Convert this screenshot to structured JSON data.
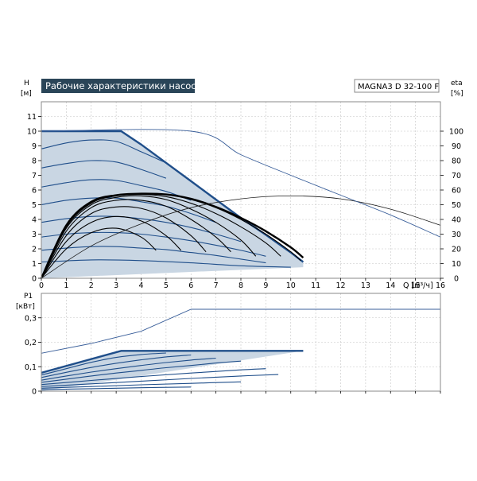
{
  "chart_data": [
    {
      "type": "line",
      "title": "Рабочие характеристики насоса",
      "model": "MAGNA3 D 32-100 F",
      "ylabel": "H",
      "yunit": "[м]",
      "y2label": "eta",
      "y2unit": "[%]",
      "xlabel": "Q [м³/ч]",
      "xlim": [
        0,
        16
      ],
      "xticks": [
        0,
        1,
        2,
        3,
        4,
        5,
        6,
        7,
        8,
        9,
        10,
        11,
        12,
        13,
        14,
        15,
        16
      ],
      "ylim": [
        0,
        12
      ],
      "yticks": [
        0,
        1,
        2,
        3,
        4,
        5,
        6,
        7,
        8,
        9,
        10,
        11
      ],
      "y2lim": [
        0,
        120
      ],
      "y2ticks": [
        0,
        10,
        20,
        30,
        40,
        50,
        60,
        70,
        80,
        90,
        100
      ],
      "grid": true,
      "operating_range": [
        [
          0,
          10
        ],
        [
          3.2,
          10
        ],
        [
          10.5,
          1.1
        ],
        [
          10.5,
          0.75
        ],
        [
          0,
          0
        ]
      ],
      "series": [
        {
          "role": "max_curve",
          "points": [
            [
              0,
              10
            ],
            [
              3.2,
              10
            ],
            [
              4,
              9.1
            ],
            [
              5,
              7.85
            ],
            [
              6,
              6.6
            ],
            [
              7,
              5.35
            ],
            [
              8,
              4.1
            ],
            [
              9,
              2.95
            ],
            [
              10,
              1.75
            ],
            [
              10.5,
              1.1
            ]
          ]
        },
        {
          "role": "speed_curves",
          "curves": [
            [
              [
                0,
                8.8
              ],
              [
                1,
                9.2
              ],
              [
                2,
                9.4
              ],
              [
                3,
                9.3
              ],
              [
                4,
                8.6
              ],
              [
                5,
                7.85
              ]
            ],
            [
              [
                0,
                7.5
              ],
              [
                1,
                7.8
              ],
              [
                2,
                8.0
              ],
              [
                3,
                7.9
              ],
              [
                4,
                7.4
              ],
              [
                5,
                6.8
              ]
            ],
            [
              [
                0,
                6.2
              ],
              [
                1,
                6.5
              ],
              [
                2,
                6.7
              ],
              [
                3,
                6.65
              ],
              [
                4,
                6.3
              ],
              [
                5,
                5.9
              ],
              [
                6,
                5.3
              ]
            ],
            [
              [
                0,
                5.0
              ],
              [
                1,
                5.3
              ],
              [
                2,
                5.45
              ],
              [
                3,
                5.45
              ],
              [
                4,
                5.2
              ],
              [
                5,
                4.9
              ],
              [
                6,
                4.4
              ],
              [
                7,
                3.8
              ]
            ],
            [
              [
                0,
                3.8
              ],
              [
                1,
                4.05
              ],
              [
                2,
                4.2
              ],
              [
                3,
                4.2
              ],
              [
                4,
                4.05
              ],
              [
                5,
                3.8
              ],
              [
                6,
                3.45
              ],
              [
                7,
                3.0
              ],
              [
                8,
                2.5
              ]
            ],
            [
              [
                0,
                2.8
              ],
              [
                1,
                3.0
              ],
              [
                2,
                3.1
              ],
              [
                3,
                3.1
              ],
              [
                4,
                3.0
              ],
              [
                5,
                2.8
              ],
              [
                6,
                2.55
              ],
              [
                7,
                2.25
              ],
              [
                8,
                1.9
              ],
              [
                9,
                1.5
              ]
            ],
            [
              [
                0,
                1.9
              ],
              [
                1,
                2.05
              ],
              [
                2,
                2.15
              ],
              [
                3,
                2.15
              ],
              [
                4,
                2.05
              ],
              [
                5,
                1.95
              ],
              [
                6,
                1.75
              ],
              [
                7,
                1.55
              ],
              [
                8,
                1.3
              ],
              [
                9,
                1.05
              ]
            ],
            [
              [
                0,
                1.1
              ],
              [
                2,
                1.25
              ],
              [
                4,
                1.2
              ],
              [
                6,
                1.05
              ],
              [
                8,
                0.85
              ],
              [
                10,
                0.75
              ]
            ]
          ]
        },
        {
          "role": "efficiency_arcs_black",
          "curves": [
            [
              [
                0,
                0
              ],
              [
                1,
                2.0
              ],
              [
                2,
                3.1
              ],
              [
                3,
                3.4
              ],
              [
                4,
                2.8
              ],
              [
                4.6,
                1.9
              ]
            ],
            [
              [
                0,
                0
              ],
              [
                1,
                2.5
              ],
              [
                2,
                3.8
              ],
              [
                3,
                4.2
              ],
              [
                4,
                3.9
              ],
              [
                5,
                2.9
              ],
              [
                5.6,
                1.9
              ]
            ],
            [
              [
                0,
                0
              ],
              [
                1,
                2.9
              ],
              [
                2,
                4.4
              ],
              [
                3,
                4.85
              ],
              [
                4,
                4.75
              ],
              [
                5,
                4.1
              ],
              [
                6,
                2.9
              ],
              [
                6.6,
                1.8
              ]
            ],
            [
              [
                0,
                0
              ],
              [
                1,
                3.2
              ],
              [
                2,
                4.8
              ],
              [
                3,
                5.3
              ],
              [
                4,
                5.3
              ],
              [
                5,
                4.9
              ],
              [
                6,
                4.0
              ],
              [
                7,
                2.8
              ],
              [
                7.6,
                1.8
              ]
            ],
            [
              [
                0,
                0
              ],
              [
                1,
                3.4
              ],
              [
                2,
                5.0
              ],
              [
                3,
                5.5
              ],
              [
                4,
                5.6
              ],
              [
                5,
                5.35
              ],
              [
                6,
                4.7
              ],
              [
                7,
                3.8
              ],
              [
                8,
                2.6
              ],
              [
                8.6,
                1.5
              ]
            ],
            [
              [
                0,
                0
              ],
              [
                1,
                3.5
              ],
              [
                2,
                5.1
              ],
              [
                3,
                5.6
              ],
              [
                4,
                5.7
              ],
              [
                5,
                5.55
              ],
              [
                6,
                5.1
              ],
              [
                7,
                4.4
              ],
              [
                8,
                3.5
              ],
              [
                9,
                2.4
              ],
              [
                9.6,
                1.5
              ]
            ],
            [
              [
                0,
                0
              ],
              [
                1,
                3.6
              ],
              [
                2,
                5.2
              ],
              [
                3,
                5.65
              ],
              [
                4,
                5.75
              ],
              [
                5,
                5.7
              ],
              [
                6,
                5.35
              ],
              [
                7,
                4.8
              ],
              [
                8,
                4.0
              ],
              [
                9,
                3.0
              ],
              [
                10,
                1.8
              ],
              [
                10.4,
                1.2
              ]
            ]
          ]
        },
        {
          "role": "efficiency_bold",
          "points": [
            [
              0,
              0
            ],
            [
              1,
              3.6
            ],
            [
              2,
              5.2
            ],
            [
              3,
              5.65
            ],
            [
              4,
              5.75
            ],
            [
              5,
              5.7
            ],
            [
              6,
              5.4
            ],
            [
              7,
              4.85
            ],
            [
              8,
              4.1
            ],
            [
              9,
              3.2
            ],
            [
              10,
              2.1
            ],
            [
              10.5,
              1.4
            ]
          ]
        },
        {
          "role": "eta_overall",
          "axis": "y2",
          "points": [
            [
              0,
              0
            ],
            [
              2,
              22
            ],
            [
              4,
              37
            ],
            [
              6,
              48
            ],
            [
              8,
              54
            ],
            [
              10,
              56
            ],
            [
              12,
              54
            ],
            [
              14,
              47
            ],
            [
              16,
              36
            ]
          ]
        },
        {
          "role": "h_extended",
          "points": [
            [
              0,
              10
            ],
            [
              6,
              10
            ],
            [
              8,
              8.4
            ],
            [
              10,
              7.0
            ],
            [
              12,
              5.65
            ],
            [
              14,
              4.3
            ],
            [
              16,
              2.8
            ]
          ]
        }
      ]
    },
    {
      "type": "line",
      "ylabel": "P1",
      "yunit": "[кВт]",
      "xlim": [
        0,
        16
      ],
      "xticks": [
        0,
        1,
        2,
        3,
        4,
        5,
        6,
        7,
        8,
        9,
        10,
        11,
        12,
        13,
        14,
        15,
        16
      ],
      "ylim": [
        0,
        0.4
      ],
      "yticks": [
        0,
        0.1,
        0.2,
        0.3
      ],
      "ytick_labels": [
        "0",
        "0,1",
        "0,2",
        "0,3"
      ],
      "grid": true,
      "operating_range": [
        [
          0,
          0.075
        ],
        [
          3.2,
          0.165
        ],
        [
          10.5,
          0.165
        ],
        [
          0,
          0
        ]
      ],
      "series": [
        {
          "role": "max_curve",
          "points": [
            [
              0,
              0.075
            ],
            [
              3.2,
              0.165
            ],
            [
              10.5,
              0.165
            ]
          ]
        },
        {
          "role": "speed_curves",
          "curves": [
            [
              [
                0,
                0.066
              ],
              [
                1,
                0.092
              ],
              [
                2,
                0.118
              ],
              [
                3,
                0.138
              ],
              [
                4,
                0.15
              ],
              [
                5,
                0.156
              ]
            ],
            [
              [
                0,
                0.056
              ],
              [
                1,
                0.077
              ],
              [
                2,
                0.097
              ],
              [
                3,
                0.114
              ],
              [
                4,
                0.128
              ],
              [
                5,
                0.14
              ],
              [
                6,
                0.148
              ]
            ],
            [
              [
                0,
                0.045
              ],
              [
                1,
                0.062
              ],
              [
                2,
                0.078
              ],
              [
                3,
                0.092
              ],
              [
                4,
                0.105
              ],
              [
                5,
                0.117
              ],
              [
                6,
                0.127
              ],
              [
                7,
                0.135
              ]
            ],
            [
              [
                0,
                0.036
              ],
              [
                1,
                0.049
              ],
              [
                2,
                0.062
              ],
              [
                3,
                0.074
              ],
              [
                4,
                0.085
              ],
              [
                5,
                0.096
              ],
              [
                6,
                0.105
              ],
              [
                7,
                0.115
              ],
              [
                8,
                0.123
              ]
            ],
            [
              [
                0,
                0.027
              ],
              [
                2,
                0.044
              ],
              [
                4,
                0.06
              ],
              [
                6,
                0.074
              ],
              [
                8,
                0.087
              ],
              [
                9,
                0.092
              ]
            ],
            [
              [
                0,
                0.019
              ],
              [
                2,
                0.03
              ],
              [
                4,
                0.041
              ],
              [
                6,
                0.052
              ],
              [
                8,
                0.062
              ],
              [
                9.5,
                0.068
              ]
            ],
            [
              [
                0,
                0.012
              ],
              [
                2,
                0.019
              ],
              [
                4,
                0.026
              ],
              [
                6,
                0.032
              ],
              [
                8,
                0.038
              ]
            ],
            [
              [
                0,
                0.006
              ],
              [
                2,
                0.01
              ],
              [
                4,
                0.014
              ],
              [
                6,
                0.017
              ]
            ]
          ]
        },
        {
          "role": "p1_extended",
          "points": [
            [
              0,
              0.155
            ],
            [
              2,
              0.195
            ],
            [
              4,
              0.245
            ],
            [
              6,
              0.335
            ],
            [
              16,
              0.335
            ]
          ]
        }
      ]
    }
  ]
}
